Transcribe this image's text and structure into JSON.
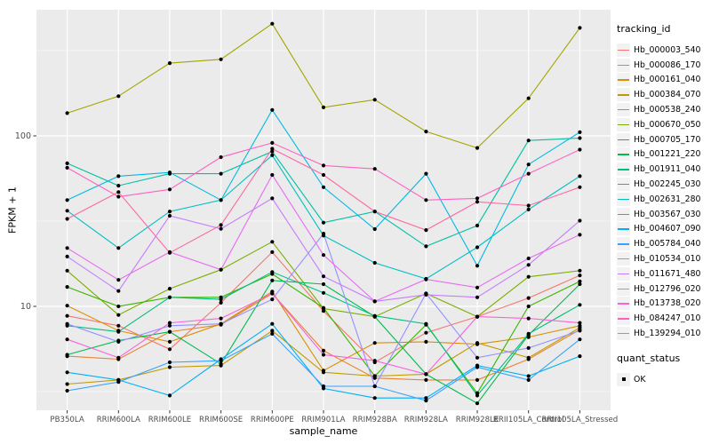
{
  "chart_data": {
    "type": "line",
    "title": "",
    "xlabel": "sample_name",
    "ylabel": "FPKM + 1",
    "y_scale": "log10",
    "y_ticks": [
      10,
      100
    ],
    "y_minor_ticks": [
      3.1623,
      31.623,
      316.23
    ],
    "ylim": [
      2.4,
      560
    ],
    "grid": "on",
    "legend_position": "right",
    "panel_bg": "#EBEBEB",
    "grid_color": "#FFFFFF",
    "tick_label_color": "#4D4D4D",
    "point_color": "#000000",
    "categories": [
      "PB350LA",
      "RRIM600LA",
      "RRIM600LE",
      "RRIM600SE",
      "RRIM600PE",
      "RRIM901LA",
      "RRIM928BA",
      "RRIM928LA",
      "RRIM928LE",
      "RRII105LA_Control",
      "RRII105LA_Stressed"
    ],
    "series": [
      {
        "name": "Hb_000003_540",
        "color": "#F8766D",
        "values": [
          8.8,
          7.7,
          5.6,
          10.5,
          20.8,
          9.4,
          4.7,
          7.0,
          8.7,
          11.2,
          15.2
        ]
      },
      {
        "name": "Hb_000086_170",
        "color": "#EA8331",
        "values": [
          5.1,
          4.9,
          7.1,
          7.8,
          11.9,
          5.5,
          3.8,
          3.7,
          3.7,
          4.9,
          7.3
        ]
      },
      {
        "name": "Hb_000161_040",
        "color": "#D89000",
        "values": [
          10.1,
          7.2,
          6.2,
          7.9,
          12.2,
          4.2,
          6.1,
          6.2,
          6.0,
          6.6,
          7.7
        ]
      },
      {
        "name": "Hb_000384_070",
        "color": "#C09B00",
        "values": [
          3.5,
          3.7,
          4.4,
          4.5,
          7.2,
          4.1,
          3.9,
          4.0,
          6.1,
          5.0,
          7.5
        ]
      },
      {
        "name": "Hb_000538_240",
        "color": "#A3A500",
        "values": [
          136,
          171,
          267,
          281,
          455,
          147,
          163,
          106,
          85,
          166,
          430
        ]
      },
      {
        "name": "Hb_000670_050",
        "color": "#7CAE00",
        "values": [
          16.2,
          8.9,
          12.7,
          16.4,
          23.9,
          9.7,
          8.7,
          11.9,
          8.7,
          14.9,
          16.2
        ]
      },
      {
        "name": "Hb_000705_170",
        "color": "#39B600",
        "values": [
          13.0,
          10.0,
          11.3,
          11.3,
          15.5,
          9.8,
          3.9,
          7.8,
          3.1,
          10.0,
          14.0
        ]
      },
      {
        "name": "Hb_001221_220",
        "color": "#00BB4E",
        "values": [
          5.2,
          6.3,
          7.1,
          4.6,
          14.2,
          13.5,
          8.7,
          4.0,
          2.7,
          6.8,
          13.5
        ]
      },
      {
        "name": "Hb_001911_040",
        "color": "#00BF7D",
        "values": [
          7.7,
          7.1,
          11.3,
          11.0,
          15.9,
          12.0,
          8.8,
          7.9,
          3.0,
          6.9,
          10.2
        ]
      },
      {
        "name": "Hb_002245_030",
        "color": "#00C1A3",
        "values": [
          69,
          51,
          60,
          60,
          81,
          31,
          36,
          22.5,
          29.8,
          94,
          97
        ]
      },
      {
        "name": "Hb_002631_280",
        "color": "#00BFC4",
        "values": [
          36.4,
          22,
          36,
          42,
          77,
          26,
          18,
          14.5,
          22.2,
          37,
          58
        ]
      },
      {
        "name": "Hb_003567_030",
        "color": "#00BAE0",
        "values": [
          42,
          58,
          61,
          42,
          142,
          50,
          28.4,
          60,
          17.3,
          68,
          105
        ]
      },
      {
        "name": "Hb_004607_090",
        "color": "#00B0F6",
        "values": [
          4.1,
          3.7,
          3.0,
          4.9,
          7.9,
          3.3,
          2.9,
          2.9,
          4.5,
          3.9,
          5.1
        ]
      },
      {
        "name": "Hb_005784_040",
        "color": "#35A2FF",
        "values": [
          3.2,
          3.6,
          4.7,
          4.8,
          6.9,
          3.4,
          3.4,
          2.8,
          4.4,
          3.7,
          6.4
        ]
      },
      {
        "name": "Hb_010534_010",
        "color": "#9590FF",
        "values": [
          7.9,
          6.2,
          7.7,
          7.9,
          11.0,
          26.7,
          3.4,
          11.9,
          5.0,
          5.7,
          7.2
        ]
      },
      {
        "name": "Hb_011671_480",
        "color": "#C77CFF",
        "values": [
          19.6,
          12.3,
          34,
          28.5,
          43,
          15,
          10.7,
          11.7,
          11.3,
          17.5,
          31.8
        ]
      },
      {
        "name": "Hb_012796_020",
        "color": "#E76BF3",
        "values": [
          22,
          14.3,
          20.8,
          16.4,
          59,
          20,
          10.7,
          14.4,
          12.9,
          19.1,
          26.3
        ]
      },
      {
        "name": "Hb_013738_020",
        "color": "#FA62DB",
        "values": [
          6.4,
          5.0,
          8.0,
          8.5,
          11.9,
          5.2,
          4.8,
          4.0,
          8.7,
          8.5,
          8.0
        ]
      },
      {
        "name": "Hb_084247_010",
        "color": "#FF61C3",
        "values": [
          65,
          44,
          48.5,
          75,
          91,
          67,
          64,
          42,
          43,
          60,
          83
        ]
      },
      {
        "name": "Hb_139294_010",
        "color": "#FF67A4",
        "values": [
          32.6,
          46.8,
          20.6,
          30,
          84,
          59,
          36,
          28,
          41,
          39,
          50
        ]
      }
    ],
    "legend": {
      "color_title": "tracking_id",
      "shape_title": "quant_status",
      "shape_items": [
        {
          "label": "OK"
        }
      ]
    }
  }
}
